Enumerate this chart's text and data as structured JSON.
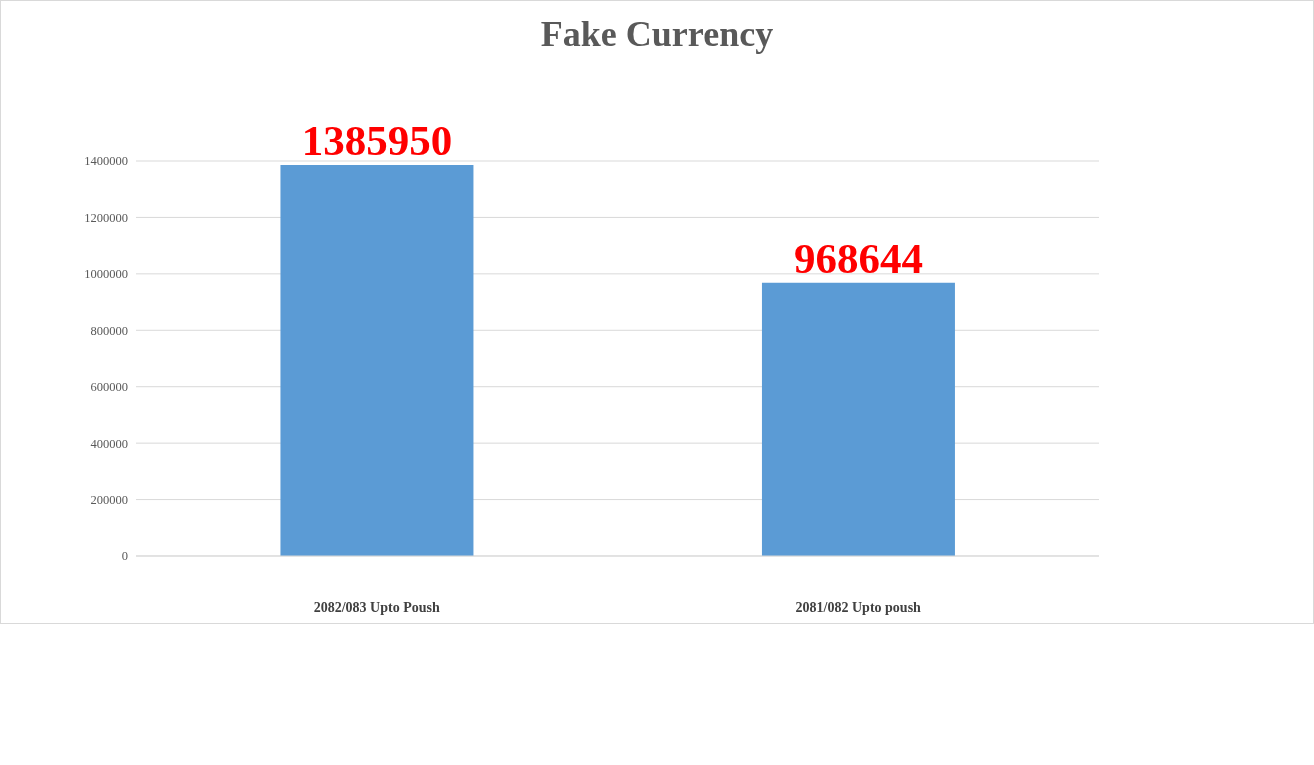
{
  "chart_data": {
    "type": "bar",
    "title": "Fake Currency",
    "categories": [
      "2082/083 Upto Poush",
      "2081/082 Upto poush"
    ],
    "values": [
      1385950,
      968644
    ],
    "color": "#5b9bd5",
    "ylim": [
      0,
      1400000
    ],
    "yticks": [
      0,
      200000,
      400000,
      600000,
      800000,
      1000000,
      1200000,
      1400000
    ],
    "grid": "y",
    "data_labels": true
  }
}
